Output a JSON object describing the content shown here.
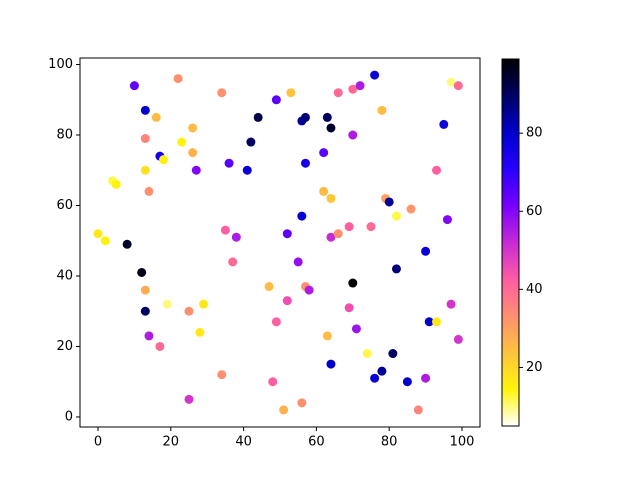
{
  "chart_data": {
    "type": "scatter",
    "x": [
      10,
      22,
      34,
      53,
      49,
      66,
      70,
      72,
      76,
      97,
      99,
      13,
      16,
      26,
      44,
      56,
      57,
      63,
      64,
      78,
      95,
      13,
      23,
      17,
      18,
      26,
      42,
      36,
      27,
      41,
      57,
      62,
      70,
      13,
      4,
      5,
      14,
      62,
      64,
      79,
      80,
      82,
      86,
      93,
      96,
      0,
      2,
      8,
      35,
      38,
      52,
      56,
      64,
      66,
      69,
      75,
      90,
      12,
      55,
      70,
      82,
      13,
      47,
      57,
      58,
      19,
      29,
      13,
      25,
      37,
      49,
      52,
      69,
      71,
      91,
      93,
      97,
      14,
      28,
      63,
      99,
      17,
      74,
      81,
      64,
      78,
      76,
      85,
      90,
      48,
      34,
      25,
      51,
      56,
      88
    ],
    "y": [
      94,
      96,
      92,
      92,
      90,
      92,
      93,
      94,
      97,
      95,
      94,
      87,
      85,
      82,
      85,
      84,
      85,
      85,
      82,
      87,
      83,
      79,
      78,
      74,
      73,
      75,
      78,
      72,
      70,
      70,
      72,
      75,
      80,
      70,
      67,
      66,
      64,
      64,
      62,
      62,
      61,
      57,
      59,
      70,
      56,
      52,
      50,
      49,
      53,
      51,
      52,
      57,
      51,
      52,
      54,
      54,
      47,
      41,
      44,
      38,
      42,
      36,
      37,
      37,
      36,
      32,
      32,
      30,
      30,
      44,
      27,
      33,
      31,
      25,
      27,
      27,
      32,
      23,
      24,
      23,
      22,
      20,
      18,
      18,
      15,
      13,
      11,
      10,
      11,
      10,
      12,
      5,
      2,
      4,
      2
    ],
    "color_values": [
      64,
      33,
      33,
      24,
      65,
      40,
      40,
      55,
      78,
      10,
      40,
      80,
      25,
      25,
      92,
      85,
      88,
      90,
      95,
      25,
      77,
      35,
      15,
      75,
      15,
      27,
      90,
      65,
      60,
      78,
      75,
      65,
      55,
      18,
      12,
      15,
      33,
      25,
      23,
      30,
      85,
      12,
      32,
      42,
      60,
      17,
      15,
      95,
      42,
      55,
      65,
      78,
      52,
      33,
      42,
      40,
      78,
      97,
      58,
      99,
      88,
      28,
      25,
      33,
      55,
      10,
      17,
      90,
      33,
      40,
      42,
      45,
      45,
      57,
      80,
      17,
      50,
      55,
      17,
      25,
      50,
      40,
      12,
      90,
      80,
      85,
      78,
      80,
      55,
      42,
      33,
      50,
      27,
      33,
      35
    ],
    "colormap": [
      "#ffffff",
      "#fff50a",
      "#ffc23d",
      "#ff8f70",
      "#ff5ca3",
      "#c729d6",
      "#7800ff",
      "#2800ff",
      "#0000cc",
      "#000066",
      "#000000"
    ],
    "clim": [
      5,
      99
    ],
    "cticks": [
      20,
      40,
      60,
      80
    ],
    "xlim": [
      -4.95,
      104.95
    ],
    "ylim": [
      -2.85,
      101.85
    ],
    "xticks": [
      0,
      20,
      40,
      60,
      80,
      100
    ],
    "yticks": [
      0,
      20,
      40,
      60,
      80,
      100
    ]
  }
}
